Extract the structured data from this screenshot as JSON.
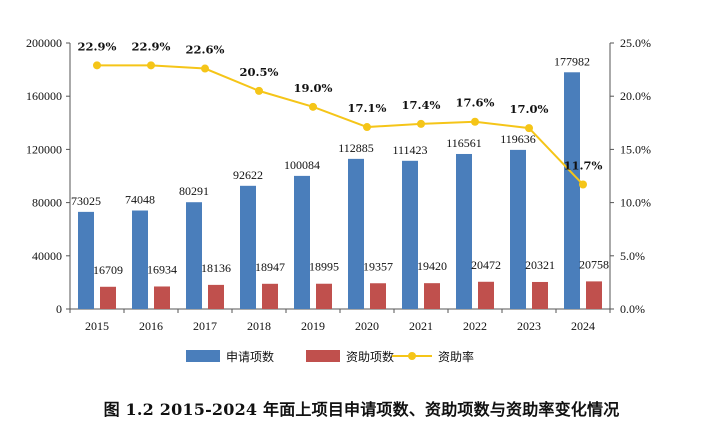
{
  "chart_data": {
    "type": "bar",
    "categories": [
      "2015",
      "2016",
      "2017",
      "2018",
      "2019",
      "2020",
      "2021",
      "2022",
      "2023",
      "2024"
    ],
    "series": [
      {
        "name": "申请项数",
        "kind": "bar",
        "axis": "left",
        "color": "#4a7ebb",
        "values": [
          73025,
          74048,
          80291,
          92622,
          100084,
          112885,
          111423,
          116561,
          119636,
          177982
        ],
        "labels": [
          "73025",
          "74048",
          "80291",
          "92622",
          "100084",
          "112885",
          "111423",
          "116561",
          "119636",
          "177982"
        ]
      },
      {
        "name": "资助项数",
        "kind": "bar",
        "axis": "left",
        "color": "#c0504d",
        "values": [
          16709,
          16934,
          18136,
          18947,
          18995,
          19357,
          19420,
          20472,
          20321,
          20758
        ],
        "labels": [
          "16709",
          "16934",
          "18136",
          "18947",
          "18995",
          "19357",
          "19420",
          "20472",
          "20321",
          "20758"
        ]
      },
      {
        "name": "资助率",
        "kind": "line",
        "axis": "right",
        "color": "#f5c518",
        "values": [
          22.9,
          22.9,
          22.6,
          20.5,
          19.0,
          17.1,
          17.4,
          17.6,
          17.0,
          11.7
        ],
        "labels": [
          "22.9%",
          "22.9%",
          "22.6%",
          "20.5%",
          "19.0%",
          "17.1%",
          "17.4%",
          "17.6%",
          "17.0%",
          "11.7%"
        ]
      }
    ],
    "y_left": {
      "min": 0,
      "max": 200000,
      "ticks": [
        "0",
        "40000",
        "80000",
        "120000",
        "160000",
        "200000"
      ],
      "tick_values": [
        0,
        40000,
        80000,
        120000,
        160000,
        200000
      ]
    },
    "y_right": {
      "min": 0,
      "max": 25,
      "ticks": [
        "0.0%",
        "5.0%",
        "10.0%",
        "15.0%",
        "20.0%",
        "25.0%"
      ],
      "tick_values": [
        0,
        5,
        10,
        15,
        20,
        25
      ]
    },
    "grid": false,
    "legend_position": "bottom"
  },
  "caption": "图 1.2  2015-2024 年面上项目申请项数、资助项数与资助率变化情况"
}
